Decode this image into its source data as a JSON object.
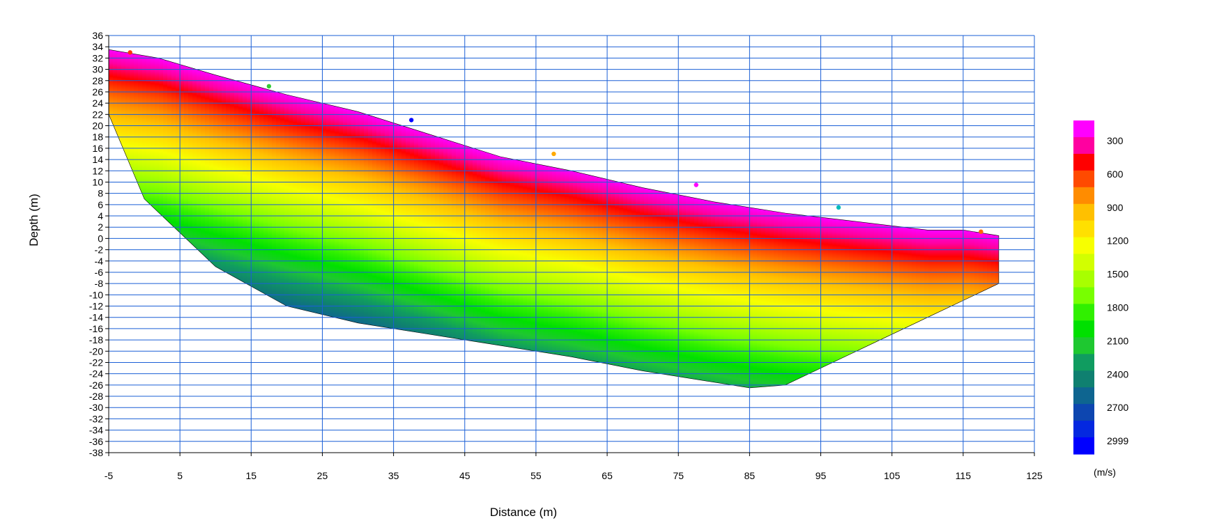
{
  "chart_data": {
    "type": "heatmap",
    "title": "",
    "xlabel": "Distance (m)",
    "ylabel": "Depth (m)",
    "xlim": [
      -5,
      125
    ],
    "ylim": [
      -38,
      36
    ],
    "x_ticks": [
      -5,
      5,
      15,
      25,
      35,
      45,
      55,
      65,
      75,
      85,
      95,
      105,
      115,
      125
    ],
    "y_ticks": [
      36,
      34,
      32,
      30,
      28,
      26,
      24,
      22,
      20,
      18,
      16,
      14,
      12,
      10,
      8,
      6,
      4,
      2,
      0,
      -2,
      -4,
      -6,
      -8,
      -10,
      -12,
      -14,
      -16,
      -18,
      -20,
      -22,
      -24,
      -26,
      -28,
      -30,
      -32,
      -34,
      -36,
      -38
    ],
    "grid": true,
    "colorbar": {
      "unit": "(m/s)",
      "labels": [
        "300",
        "600",
        "900",
        "1200",
        "1500",
        "1800",
        "2100",
        "2400",
        "2700",
        "2999"
      ],
      "colors": [
        "#ff00ff",
        "#ff00a0",
        "#ff0000",
        "#ff4a00",
        "#ff8c00",
        "#ffc000",
        "#ffe000",
        "#f7ff00",
        "#d2ff00",
        "#a8ff00",
        "#78ff00",
        "#30f000",
        "#00e000",
        "#1ec830",
        "#109c60",
        "#0f8070",
        "#0e6590",
        "#0d46b0",
        "#0428e0",
        "#0000ff"
      ]
    },
    "surface_profile": {
      "x": [
        -5,
        2,
        10,
        20,
        30,
        40,
        50,
        60,
        70,
        80,
        90,
        100,
        110,
        115,
        120
      ],
      "y": [
        33.5,
        32,
        29,
        25.5,
        22.5,
        18.5,
        14.5,
        12,
        9,
        6.5,
        4.5,
        3,
        1.5,
        1.5,
        0.5
      ]
    },
    "bottom_profile": {
      "x": [
        -5,
        0,
        10,
        20,
        30,
        40,
        50,
        60,
        70,
        80,
        85,
        90,
        100,
        110,
        120
      ],
      "y": [
        22,
        7,
        -5,
        -12,
        -15,
        -17,
        -19,
        -21,
        -23.5,
        -25.5,
        -26.5,
        -26,
        -20,
        -14,
        -8
      ]
    },
    "sensors": [
      {
        "x": -2,
        "y": 33,
        "color": "#ff3300"
      },
      {
        "x": 17.5,
        "y": 27,
        "color": "#33cc33"
      },
      {
        "x": 37.5,
        "y": 21,
        "color": "#0000ff"
      },
      {
        "x": 57.5,
        "y": 15,
        "color": "#ffaa00"
      },
      {
        "x": 77.5,
        "y": 9.5,
        "color": "#ff00ff"
      },
      {
        "x": 97.5,
        "y": 5.5,
        "color": "#00bbbb"
      },
      {
        "x": 117.5,
        "y": 1.2,
        "color": "#ff6600"
      }
    ]
  }
}
